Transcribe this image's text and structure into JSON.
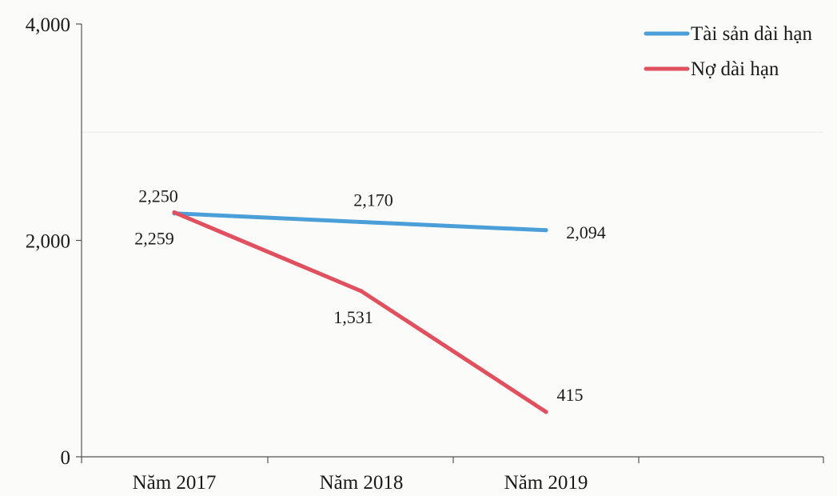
{
  "chart_data": {
    "type": "line",
    "categories": [
      "Năm 2017",
      "Năm 2018",
      "Năm 2019"
    ],
    "ylim": [
      0,
      4000
    ],
    "yticks": [
      0,
      2000,
      4000
    ],
    "ytick_labels": [
      "0",
      "2,000",
      "4,000"
    ],
    "grid": "horizontal (faint)",
    "legend_position": "top-right",
    "series": [
      {
        "name": "Tài sản dài hạn",
        "color": "#4a9fd8",
        "values": [
          2250,
          2170,
          2094
        ],
        "labels": [
          "2,250",
          "2,170",
          "2,094"
        ]
      },
      {
        "name": "Nợ dài hạn",
        "color": "#e0505e",
        "values": [
          2259,
          1531,
          415
        ],
        "labels": [
          "2,259",
          "1,531",
          "415"
        ]
      }
    ]
  }
}
